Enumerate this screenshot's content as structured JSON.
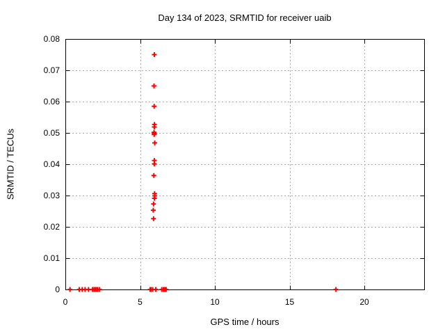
{
  "chart_data": {
    "type": "scatter",
    "title": "Day 134 of 2023, SRMTID for receiver uaib",
    "xlabel": "GPS time / hours",
    "ylabel": "SRMTID / TECUs",
    "xlim": [
      0,
      24
    ],
    "ylim": [
      0,
      0.08
    ],
    "xticks": [
      0,
      5,
      10,
      15,
      20
    ],
    "xtick_labels": [
      "0",
      "5",
      "10",
      "15",
      "20"
    ],
    "yticks": [
      0,
      0.01,
      0.02,
      0.03,
      0.04,
      0.05,
      0.06,
      0.07,
      0.08
    ],
    "ytick_labels": [
      "0",
      "0.01",
      "0.02",
      "0.03",
      "0.04",
      "0.05",
      "0.06",
      "0.07",
      "0.08"
    ],
    "grid": true,
    "legend": "none",
    "marker": "plus",
    "marker_color": "#ff0000",
    "axis_color": "#000000",
    "grid_color": "#a8a8a8",
    "background_color": "#ffffff",
    "series": [
      {
        "name": "SRMTID",
        "points": [
          [
            5.95,
            0.075
          ],
          [
            5.93,
            0.065
          ],
          [
            5.94,
            0.0585
          ],
          [
            5.96,
            0.0527
          ],
          [
            5.95,
            0.0519
          ],
          [
            5.93,
            0.0502
          ],
          [
            5.95,
            0.0498
          ],
          [
            5.94,
            0.0495
          ],
          [
            5.98,
            0.0468
          ],
          [
            5.95,
            0.0412
          ],
          [
            5.95,
            0.0401
          ],
          [
            5.92,
            0.0364
          ],
          [
            5.97,
            0.0306
          ],
          [
            5.98,
            0.0299
          ],
          [
            5.96,
            0.0291
          ],
          [
            5.9,
            0.0273
          ],
          [
            5.88,
            0.0253
          ],
          [
            5.9,
            0.0226
          ],
          [
            0.31,
            0
          ],
          [
            0.93,
            0
          ],
          [
            1.13,
            0
          ],
          [
            1.32,
            0
          ],
          [
            1.55,
            0
          ],
          [
            1.82,
            0
          ],
          [
            1.92,
            0
          ],
          [
            2.01,
            0
          ],
          [
            2.1,
            0
          ],
          [
            2.17,
            0
          ],
          [
            2.29,
            0
          ],
          [
            5.67,
            0
          ],
          [
            5.73,
            0
          ],
          [
            5.84,
            0
          ],
          [
            6.05,
            0
          ],
          [
            6.45,
            0
          ],
          [
            6.56,
            0
          ],
          [
            6.65,
            0
          ],
          [
            6.74,
            0
          ],
          [
            18.1,
            0
          ]
        ]
      }
    ]
  }
}
